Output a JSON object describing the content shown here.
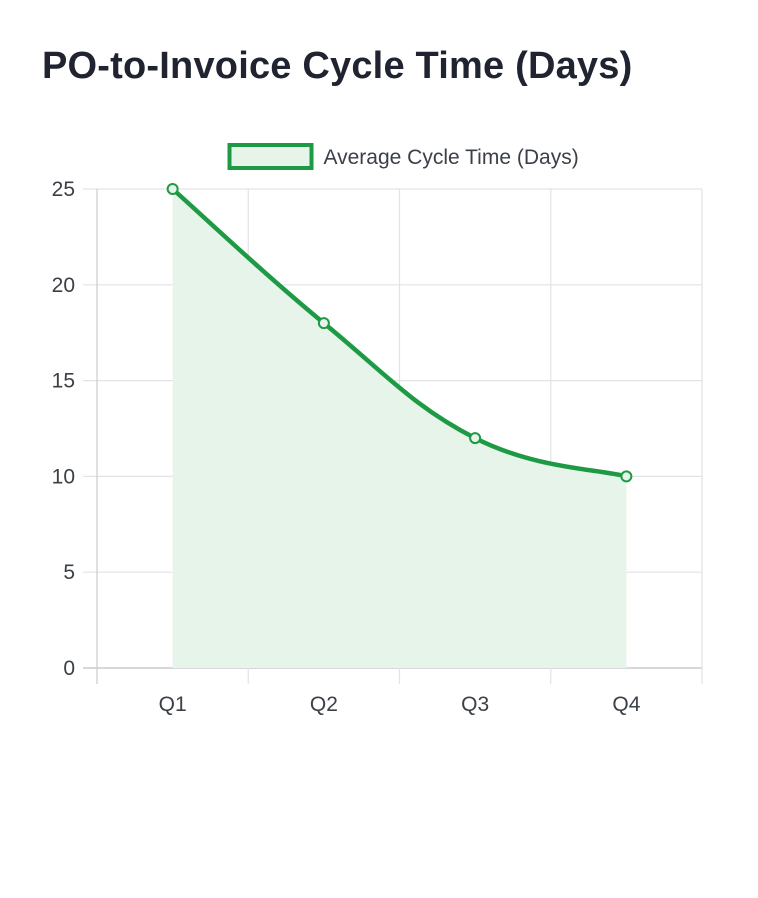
{
  "page": {
    "title": "PO-to-Invoice Cycle Time (Days)"
  },
  "chart_data": {
    "type": "area",
    "title": "PO-to-Invoice Cycle Time (Days)",
    "categories": [
      "Q1",
      "Q2",
      "Q3",
      "Q4"
    ],
    "series": [
      {
        "name": "Average Cycle Time (Days)",
        "values": [
          25,
          18,
          12,
          10
        ],
        "color": "#1e9a45",
        "fill": "#e6f4ea"
      }
    ],
    "ylim": [
      0,
      25
    ],
    "yticks": [
      0,
      5,
      10,
      15,
      20,
      25
    ],
    "grid": true,
    "legend": "top-center",
    "smooth": true
  }
}
